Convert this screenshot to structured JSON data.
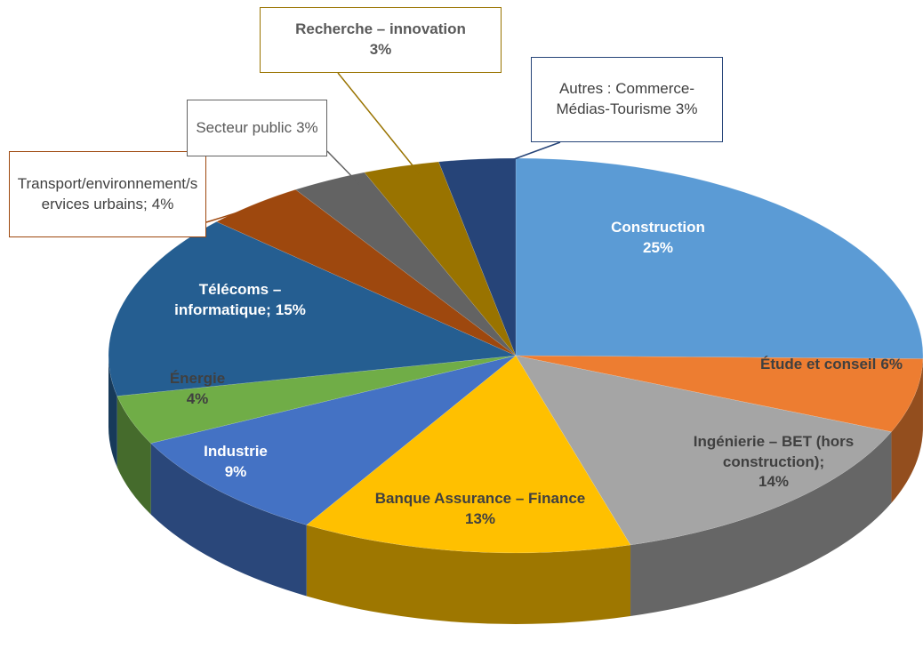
{
  "chart_data": {
    "type": "pie",
    "categories": [
      "Construction",
      "Étude et conseil",
      "Ingénierie – BET (hors construction);",
      "Banque Assurance – Finance",
      "Industrie",
      "Énergie",
      "Télécoms – informatique;",
      "Transport/environnement/services urbains;",
      "Secteur public",
      "Recherche – innovation",
      "Autres : Commerce-Médias-Tourisme"
    ],
    "values": [
      25,
      6,
      14,
      13,
      9,
      4,
      15,
      4,
      3,
      3,
      3
    ],
    "value_labels": [
      "25%",
      "6%",
      "14%",
      "13%",
      "9%",
      "4%",
      "15%",
      "4%",
      "3%",
      "3%",
      "3%"
    ],
    "colors": [
      "#5b9bd5",
      "#ed7d31",
      "#a5a5a5",
      "#ffc000",
      "#4472c4",
      "#70ad47",
      "#255e91",
      "#9e480e",
      "#636363",
      "#997300",
      "#264478"
    ],
    "label_colors": [
      "#ffffff",
      "#404040",
      "#404040",
      "#404040",
      "#ffffff",
      "#404040",
      "#ffffff",
      "#404040",
      "#595959",
      "#595959",
      "#404040"
    ]
  }
}
